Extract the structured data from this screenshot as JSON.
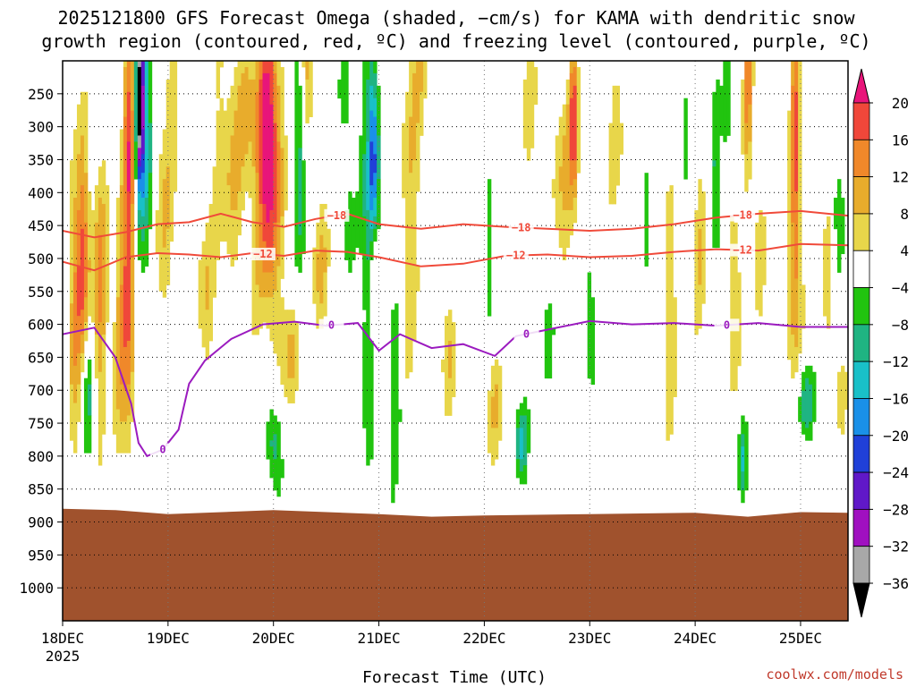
{
  "chart_data": {
    "type": "heatmap",
    "title_lines": [
      "2025121800 GFS Forecast Omega (shaded, −cm/s) for KAMA with dendritic snow",
      "growth region (contoured, red, ºC) and freezing level (contoured, purple, ºC)"
    ],
    "xlabel": "Forecast Time (UTC)",
    "ylabel": "",
    "credit": "coolwx.com/models",
    "x_ticks": [
      "18DEC",
      "19DEC",
      "20DEC",
      "21DEC",
      "22DEC",
      "23DEC",
      "24DEC",
      "25DEC"
    ],
    "x_start_year": "2025",
    "x_range_days": [
      0,
      7.45
    ],
    "y_ticks": [
      250,
      300,
      350,
      400,
      450,
      500,
      550,
      600,
      650,
      700,
      750,
      800,
      850,
      900,
      950,
      1000
    ],
    "y_range_hpa": [
      200,
      1050
    ],
    "colorbar": {
      "labels": [
        "20",
        "16",
        "12",
        "8",
        "4",
        "−4",
        "−8",
        "−12",
        "−16",
        "−20",
        "−24",
        "−28",
        "−32",
        "−36"
      ],
      "bins": [
        {
          "lo": 20,
          "hi": 99,
          "color": "#e8157a"
        },
        {
          "lo": 16,
          "hi": 20,
          "color": "#f0473a"
        },
        {
          "lo": 12,
          "hi": 16,
          "color": "#f0882a"
        },
        {
          "lo": 8,
          "hi": 12,
          "color": "#e8ac2c"
        },
        {
          "lo": 4,
          "hi": 8,
          "color": "#e8d64a"
        },
        {
          "lo": -4,
          "hi": 4,
          "color": "#ffffff"
        },
        {
          "lo": -8,
          "hi": -4,
          "color": "#21c40f"
        },
        {
          "lo": -12,
          "hi": -8,
          "color": "#1fb482"
        },
        {
          "lo": -16,
          "hi": -12,
          "color": "#19c0c8"
        },
        {
          "lo": -20,
          "hi": -16,
          "color": "#1a90e8"
        },
        {
          "lo": -24,
          "hi": -20,
          "color": "#2040d8"
        },
        {
          "lo": -28,
          "hi": -24,
          "color": "#6018c8"
        },
        {
          "lo": -32,
          "hi": -28,
          "color": "#a010c0"
        },
        {
          "lo": -36,
          "hi": -32,
          "color": "#a8a8a8"
        },
        {
          "lo": -99,
          "hi": -36,
          "color": "#000000"
        }
      ]
    },
    "ground_color": "#a0522d",
    "ground_top_hpa": [
      [
        0,
        880
      ],
      [
        0.5,
        882
      ],
      [
        1.0,
        888
      ],
      [
        2.0,
        882
      ],
      [
        3.0,
        888
      ],
      [
        3.5,
        892
      ],
      [
        4.0,
        890
      ],
      [
        5.0,
        888
      ],
      [
        6.0,
        886
      ],
      [
        6.5,
        892
      ],
      [
        7.0,
        885
      ],
      [
        7.45,
        886
      ]
    ],
    "contours": [
      {
        "level": -18,
        "label": "−18",
        "color": "#f04a3a",
        "points": [
          [
            0,
            458
          ],
          [
            0.3,
            468
          ],
          [
            0.6,
            460
          ],
          [
            0.9,
            448
          ],
          [
            1.2,
            445
          ],
          [
            1.5,
            432
          ],
          [
            1.8,
            445
          ],
          [
            2.1,
            452
          ],
          [
            2.4,
            440
          ],
          [
            2.7,
            432
          ],
          [
            3.0,
            448
          ],
          [
            3.4,
            455
          ],
          [
            3.8,
            448
          ],
          [
            4.2,
            452
          ],
          [
            4.6,
            455
          ],
          [
            5.0,
            458
          ],
          [
            5.4,
            455
          ],
          [
            5.8,
            448
          ],
          [
            6.2,
            438
          ],
          [
            6.6,
            432
          ],
          [
            7.0,
            428
          ],
          [
            7.45,
            435
          ]
        ],
        "label_x": [
          2.6,
          4.35,
          6.45
        ]
      },
      {
        "level": -12,
        "label": "−12",
        "color": "#f04a3a",
        "points": [
          [
            0,
            505
          ],
          [
            0.3,
            518
          ],
          [
            0.6,
            498
          ],
          [
            0.9,
            492
          ],
          [
            1.2,
            494
          ],
          [
            1.5,
            498
          ],
          [
            1.8,
            492
          ],
          [
            2.1,
            496
          ],
          [
            2.4,
            488
          ],
          [
            2.7,
            490
          ],
          [
            3.0,
            498
          ],
          [
            3.4,
            512
          ],
          [
            3.8,
            508
          ],
          [
            4.2,
            496
          ],
          [
            4.6,
            494
          ],
          [
            5.0,
            498
          ],
          [
            5.4,
            496
          ],
          [
            5.8,
            490
          ],
          [
            6.2,
            486
          ],
          [
            6.6,
            488
          ],
          [
            7.0,
            478
          ],
          [
            7.45,
            480
          ]
        ],
        "label_x": [
          1.9,
          4.3,
          6.45
        ]
      },
      {
        "level": 0,
        "label": "0",
        "color": "#9b1bbf",
        "points": [
          [
            0,
            615
          ],
          [
            0.3,
            605
          ],
          [
            0.5,
            650
          ],
          [
            0.65,
            720
          ],
          [
            0.72,
            780
          ],
          [
            0.8,
            800
          ],
          [
            0.95,
            790
          ],
          [
            1.1,
            760
          ],
          [
            1.2,
            690
          ],
          [
            1.35,
            655
          ],
          [
            1.6,
            622
          ],
          [
            1.9,
            600
          ],
          [
            2.2,
            596
          ],
          [
            2.5,
            602
          ],
          [
            2.8,
            598
          ],
          [
            3.0,
            640
          ],
          [
            3.2,
            615
          ],
          [
            3.5,
            636
          ],
          [
            3.8,
            630
          ],
          [
            4.1,
            648
          ],
          [
            4.3,
            618
          ],
          [
            4.6,
            608
          ],
          [
            5.0,
            595
          ],
          [
            5.4,
            600
          ],
          [
            5.8,
            598
          ],
          [
            6.2,
            602
          ],
          [
            6.6,
            598
          ],
          [
            7.0,
            604
          ],
          [
            7.45,
            604
          ]
        ],
        "label_x": [
          0.95,
          2.55,
          4.4,
          6.3
        ]
      }
    ]
  }
}
